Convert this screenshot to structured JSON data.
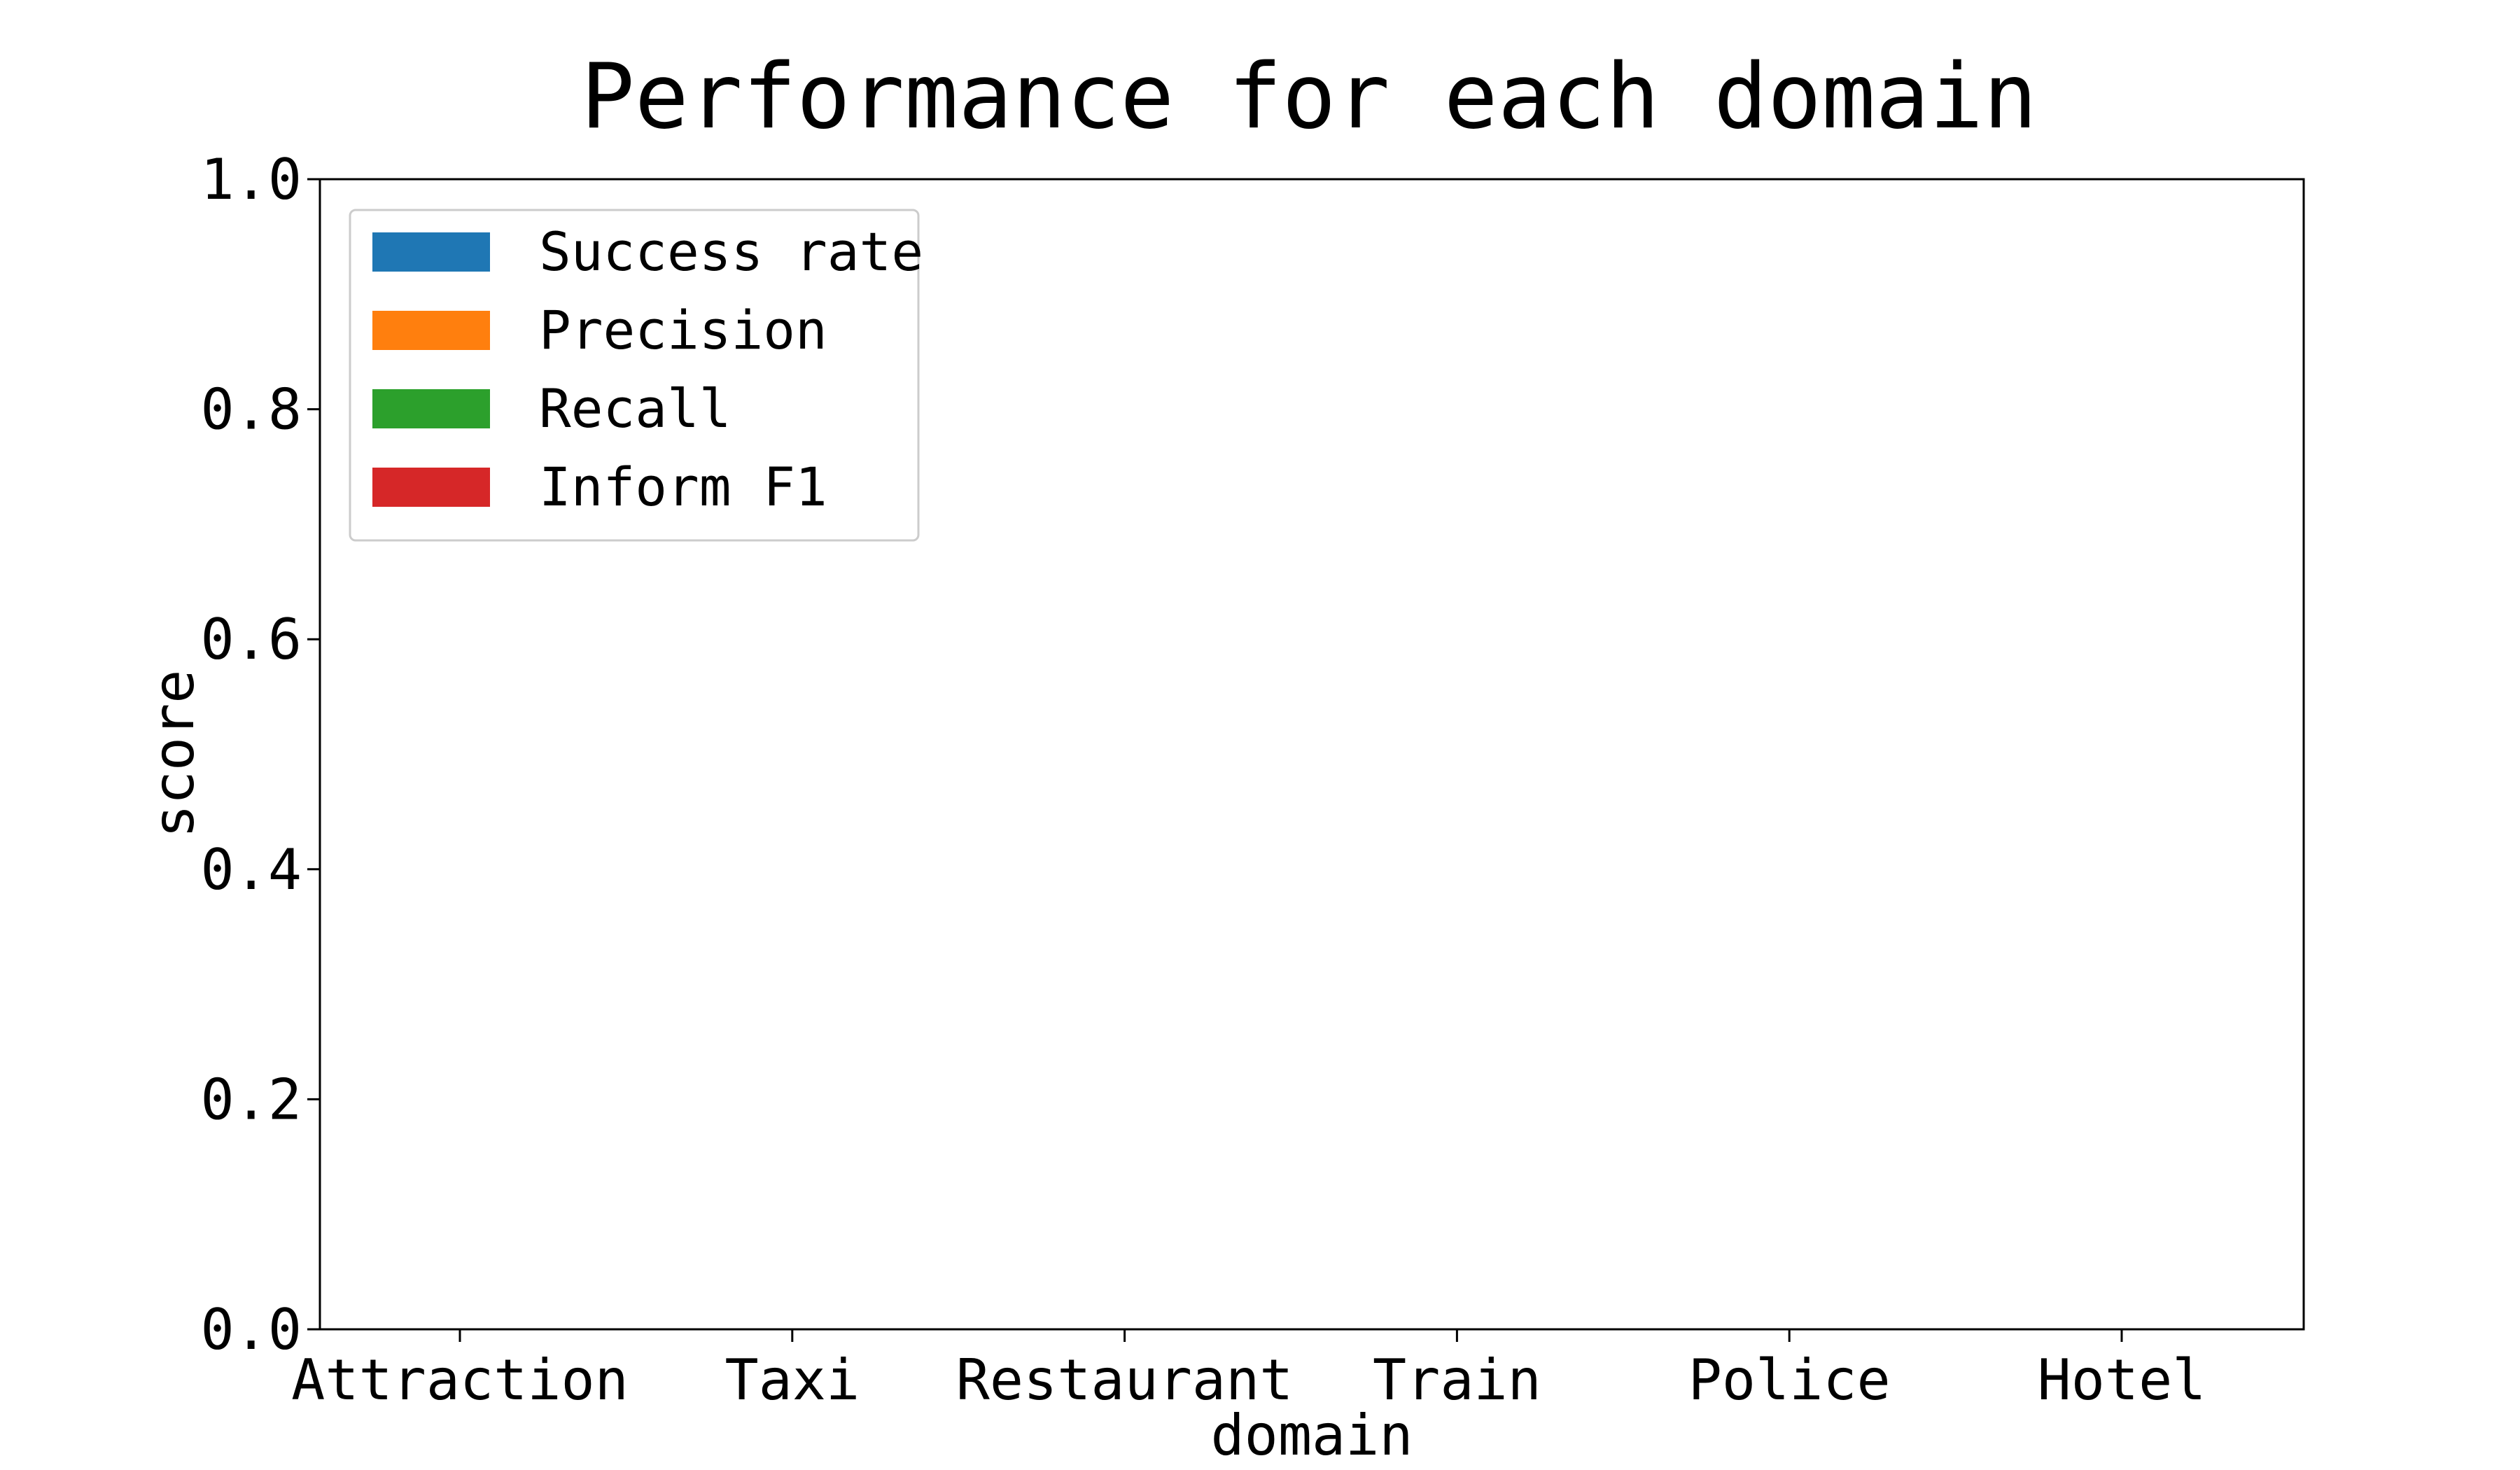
{
  "chart_data": {
    "type": "bar",
    "title": "Performance for each domain",
    "xlabel": "domain",
    "ylabel": "score",
    "ylim": [
      0,
      1.0
    ],
    "yticks": [
      "0.0",
      "0.2",
      "0.4",
      "0.6",
      "0.8",
      "1.0"
    ],
    "categories": [
      "Attraction",
      "Taxi",
      "Restaurant",
      "Train",
      "Police",
      "Hotel"
    ],
    "series": [
      {
        "name": "Success rate",
        "color": "#1f77b4",
        "values": [
          0,
          0,
          0,
          0,
          0,
          0
        ]
      },
      {
        "name": "Precision",
        "color": "#ff7f0e",
        "values": [
          0,
          0,
          0,
          0,
          0,
          0
        ]
      },
      {
        "name": "Recall",
        "color": "#2ca02c",
        "values": [
          0,
          0,
          0,
          0,
          0,
          0
        ]
      },
      {
        "name": "Inform F1",
        "color": "#d62728",
        "values": [
          0,
          0,
          0,
          0,
          0,
          0
        ]
      }
    ],
    "legend_position": "top-left",
    "grid": false
  }
}
